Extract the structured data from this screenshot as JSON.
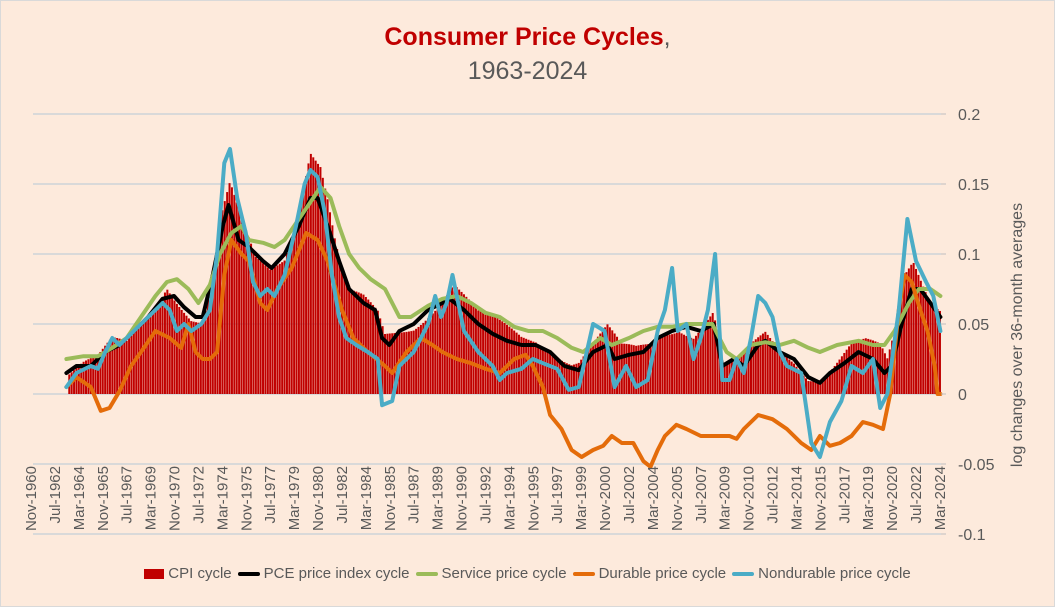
{
  "chart_data": {
    "type": "bar+line",
    "title": "Consumer Price Cycles",
    "title_suffix": ",",
    "subtitle": "1963-2024",
    "ylabel": "log changes over 36-month averages",
    "ylim": [
      -0.1,
      0.2
    ],
    "y_ticks": [
      "0.2",
      "0.15",
      "0.1",
      "0.05",
      "0",
      "-0.05",
      "-0.1"
    ],
    "y_tick_values": [
      0.2,
      0.15,
      0.1,
      0.05,
      0,
      -0.05,
      -0.1
    ],
    "x_ticks": [
      "Nov-1960",
      "Jul-1962",
      "Mar-1964",
      "Nov-1965",
      "Jul-1967",
      "Mar-1969",
      "Nov-1970",
      "Jul-1972",
      "Mar-1974",
      "Nov-1975",
      "Jul-1977",
      "Mar-1979",
      "Nov-1980",
      "Jul-1982",
      "Mar-1984",
      "Nov-1985",
      "Jul-1987",
      "Mar-1989",
      "Nov-1990",
      "Jul-1992",
      "Mar-1994",
      "Nov-1995",
      "Jul-1997",
      "Mar-1999",
      "Nov-2000",
      "Jul-2002",
      "Mar-2004",
      "Nov-2005",
      "Jul-2007",
      "Mar-2009",
      "Nov-2010",
      "Jul-2012",
      "Mar-2014",
      "Nov-2015",
      "Jul-2017",
      "Mar-2019",
      "Nov-2020",
      "Jul-2022",
      "Mar-2024"
    ],
    "x_unit": "year",
    "grid": true,
    "y_axis_side": "right",
    "legend_position": "bottom",
    "series": [
      {
        "name": "CPI cycle",
        "kind": "bar",
        "color": "#c00000",
        "x": [
          1963.5,
          1964.5,
          1965.5,
          1966.5,
          1967.5,
          1968.5,
          1969.5,
          1970.3,
          1971.0,
          1972.0,
          1972.8,
          1973.5,
          1974.0,
          1974.7,
          1975.5,
          1976.5,
          1977.5,
          1978.5,
          1979.5,
          1980.3,
          1981.0,
          1981.5,
          1982.0,
          1982.5,
          1983.0,
          1984.0,
          1985.0,
          1985.5,
          1986.5,
          1987.5,
          1988.5,
          1989.5,
          1990.3,
          1991.0,
          1992.0,
          1993.0,
          1994.0,
          1995.0,
          1996.0,
          1997.0,
          1998.5,
          1999.0,
          2000.5,
          2001.0,
          2002.0,
          2003.0,
          2004.0,
          2005.0,
          2006.0,
          2007.0,
          2008.4,
          2009.0,
          2010.0,
          2011.0,
          2012.0,
          2013.0,
          2014.0,
          2015.0,
          2016.0,
          2017.0,
          2018.0,
          2019.0,
          2020.0,
          2020.5,
          2021.0,
          2021.8,
          2022.3,
          2023.0,
          2023.5,
          2024.2
        ],
        "y": [
          0.015,
          0.02,
          0.022,
          0.035,
          0.035,
          0.05,
          0.065,
          0.081,
          0.07,
          0.055,
          0.05,
          0.08,
          0.12,
          0.146,
          0.12,
          0.095,
          0.09,
          0.1,
          0.135,
          0.177,
          0.165,
          0.14,
          0.11,
          0.085,
          0.07,
          0.065,
          0.055,
          0.04,
          0.045,
          0.05,
          0.06,
          0.07,
          0.08,
          0.07,
          0.055,
          0.05,
          0.045,
          0.04,
          0.04,
          0.035,
          0.025,
          0.025,
          0.04,
          0.045,
          0.03,
          0.03,
          0.035,
          0.045,
          0.05,
          0.045,
          0.06,
          0.02,
          0.02,
          0.03,
          0.04,
          0.03,
          0.025,
          0.015,
          0.015,
          0.025,
          0.035,
          0.035,
          0.03,
          0.02,
          0.04,
          0.085,
          0.095,
          0.08,
          0.07,
          0.065
        ]
      },
      {
        "name": "PCE price index cycle",
        "kind": "line",
        "color": "#000000",
        "x": [
          1963.3,
          1964,
          1965,
          1966,
          1967,
          1968,
          1969,
          1970,
          1970.8,
          1971.5,
          1972.3,
          1972.8,
          1973.5,
          1974.2,
          1974.6,
          1975.3,
          1976,
          1977,
          1977.6,
          1978.5,
          1979.5,
          1980.3,
          1980.8,
          1981.5,
          1982.3,
          1983,
          1984,
          1984.8,
          1985.3,
          1985.8,
          1986.5,
          1987.5,
          1988.5,
          1989.5,
          1990,
          1991,
          1992,
          1993,
          1994,
          1995,
          1996,
          1997,
          1998,
          1999,
          2000,
          2001,
          2001.5,
          2002.5,
          2003.5,
          2004.5,
          2005.5,
          2006.5,
          2007.5,
          2008.4,
          2009,
          2009.8,
          2010.5,
          2011.5,
          2012,
          2013,
          2014,
          2015,
          2015.8,
          2016.5,
          2017.5,
          2018.5,
          2019.5,
          2020.3,
          2020.8,
          2021.5,
          2022.2,
          2022.8,
          2023.5,
          2024.2
        ],
        "y": [
          0.015,
          0.02,
          0.02,
          0.03,
          0.035,
          0.045,
          0.055,
          0.068,
          0.07,
          0.062,
          0.055,
          0.055,
          0.085,
          0.12,
          0.135,
          0.11,
          0.105,
          0.095,
          0.09,
          0.1,
          0.12,
          0.14,
          0.14,
          0.12,
          0.095,
          0.075,
          0.065,
          0.06,
          0.04,
          0.035,
          0.045,
          0.05,
          0.06,
          0.065,
          0.068,
          0.06,
          0.05,
          0.043,
          0.038,
          0.035,
          0.035,
          0.03,
          0.02,
          0.017,
          0.03,
          0.035,
          0.025,
          0.028,
          0.03,
          0.04,
          0.045,
          0.048,
          0.045,
          0.05,
          0.02,
          0.025,
          0.02,
          0.035,
          0.038,
          0.03,
          0.025,
          0.012,
          0.008,
          0.015,
          0.022,
          0.03,
          0.025,
          0.015,
          0.02,
          0.05,
          0.075,
          0.075,
          0.065,
          0.055
        ]
      },
      {
        "name": "Service price cycle",
        "kind": "line",
        "color": "#9bbb59",
        "x": [
          1963.3,
          1964.5,
          1965.5,
          1966.5,
          1967.5,
          1968.5,
          1969.5,
          1970.3,
          1971,
          1971.8,
          1972.5,
          1973.3,
          1974,
          1974.8,
          1975.5,
          1976,
          1977,
          1977.8,
          1978.5,
          1979.5,
          1980.5,
          1981,
          1981.7,
          1982.3,
          1983,
          1983.7,
          1984.5,
          1985.5,
          1986.5,
          1987.3,
          1988.5,
          1989.5,
          1990.5,
          1991.5,
          1992.5,
          1993.5,
          1994.5,
          1995.5,
          1996.5,
          1997.5,
          1998.5,
          1999.3,
          2000.5,
          2001.3,
          2002.5,
          2003.5,
          2004.5,
          2005.5,
          2006.5,
          2007.5,
          2008.3,
          2009.3,
          2010,
          2011,
          2012,
          2013,
          2014,
          2015,
          2015.8,
          2017,
          2018.5,
          2019.5,
          2020.3,
          2021,
          2022,
          2022.7,
          2023.5,
          2024.2
        ],
        "y": [
          0.025,
          0.027,
          0.027,
          0.033,
          0.04,
          0.055,
          0.07,
          0.08,
          0.082,
          0.075,
          0.065,
          0.078,
          0.1,
          0.115,
          0.12,
          0.11,
          0.108,
          0.105,
          0.11,
          0.125,
          0.14,
          0.148,
          0.14,
          0.12,
          0.1,
          0.09,
          0.082,
          0.075,
          0.055,
          0.055,
          0.063,
          0.068,
          0.07,
          0.065,
          0.058,
          0.055,
          0.048,
          0.045,
          0.045,
          0.04,
          0.033,
          0.03,
          0.04,
          0.035,
          0.04,
          0.045,
          0.048,
          0.048,
          0.05,
          0.05,
          0.05,
          0.03,
          0.025,
          0.035,
          0.037,
          0.035,
          0.038,
          0.033,
          0.03,
          0.035,
          0.038,
          0.035,
          0.035,
          0.045,
          0.065,
          0.075,
          0.075,
          0.07
        ]
      },
      {
        "name": "Durable price cycle",
        "kind": "line",
        "color": "#e46c0a",
        "x": [
          1963.3,
          1964,
          1965,
          1965.7,
          1966.3,
          1967,
          1967.8,
          1968.5,
          1969.5,
          1970.5,
          1971.3,
          1971.8,
          1972.3,
          1972.8,
          1973.3,
          1973.8,
          1974.3,
          1974.8,
          1975.5,
          1976,
          1976.8,
          1977.3,
          1978,
          1979,
          1980,
          1980.8,
          1981.5,
          1982.5,
          1983.3,
          1984.3,
          1985.5,
          1986,
          1987,
          1988,
          1988.8,
          1989.5,
          1990.5,
          1991.5,
          1992.5,
          1993.5,
          1994.5,
          1995.3,
          1995.8,
          1996.5,
          1997,
          1997.8,
          1998.5,
          1999.2,
          2000,
          2000.7,
          2001.3,
          2002,
          2002.8,
          2003.5,
          2004,
          2004.5,
          2005,
          2005.8,
          2006.5,
          2007.5,
          2008.5,
          2009.5,
          2010,
          2010.5,
          2011.5,
          2012.5,
          2013.5,
          2014.5,
          2015.2,
          2015.8,
          2016.5,
          2017.2,
          2018,
          2018.8,
          2019.5,
          2020.2,
          2020.7,
          2021.3,
          2021.7,
          2022.2,
          2022.8,
          2023.3,
          2023.8,
          2024.0,
          2024.2
        ],
        "y": [
          0.005,
          0.012,
          0.005,
          -0.012,
          -0.01,
          0.002,
          0.02,
          0.03,
          0.045,
          0.04,
          0.033,
          0.05,
          0.03,
          0.025,
          0.025,
          0.03,
          0.085,
          0.11,
          0.1,
          0.095,
          0.065,
          0.06,
          0.075,
          0.09,
          0.115,
          0.11,
          0.095,
          0.06,
          0.04,
          0.03,
          0.02,
          0.015,
          0.03,
          0.04,
          0.035,
          0.03,
          0.025,
          0.022,
          0.018,
          0.015,
          0.025,
          0.028,
          0.02,
          0.005,
          -0.015,
          -0.025,
          -0.04,
          -0.045,
          -0.04,
          -0.037,
          -0.03,
          -0.035,
          -0.035,
          -0.048,
          -0.052,
          -0.04,
          -0.03,
          -0.022,
          -0.025,
          -0.03,
          -0.03,
          -0.03,
          -0.032,
          -0.025,
          -0.015,
          -0.018,
          -0.025,
          -0.035,
          -0.04,
          -0.03,
          -0.037,
          -0.035,
          -0.03,
          -0.02,
          -0.022,
          -0.025,
          0.0,
          0.06,
          0.085,
          0.08,
          0.06,
          0.045,
          0.02,
          0.0,
          0.0
        ]
      },
      {
        "name": "Nondurable price cycle",
        "kind": "line",
        "color": "#4bacc6",
        "x": [
          1963.3,
          1964,
          1965,
          1965.5,
          1966,
          1966.5,
          1967,
          1968,
          1969,
          1970,
          1970.5,
          1971,
          1971.5,
          1972,
          1972.7,
          1973.3,
          1973.8,
          1974.3,
          1974.7,
          1975.2,
          1975.8,
          1976.3,
          1976.8,
          1977.3,
          1977.8,
          1978.5,
          1979.3,
          1979.9,
          1980.3,
          1980.8,
          1981.3,
          1981.8,
          1982.3,
          1982.8,
          1983.5,
          1984.3,
          1985,
          1985.3,
          1986,
          1986.5,
          1987.5,
          1988.5,
          1989,
          1989.4,
          1989.8,
          1990.2,
          1990.5,
          1991,
          1992,
          1993,
          1993.5,
          1994,
          1995,
          1995.8,
          1996.5,
          1997.5,
          1998.3,
          1999,
          2000,
          2000.8,
          2001.5,
          2002.3,
          2003,
          2003.8,
          2004.5,
          2005,
          2005.5,
          2005.9,
          2006.5,
          2007,
          2007.5,
          2008,
          2008.5,
          2009,
          2009.5,
          2010,
          2010.5,
          2011,
          2011.5,
          2012,
          2012.5,
          2013,
          2013.5,
          2014.5,
          2015.2,
          2015.8,
          2016.5,
          2017.3,
          2018,
          2018.8,
          2019.5,
          2020,
          2020.5,
          2021.3,
          2021.9,
          2022.5,
          2023.2,
          2023.7,
          2024.2
        ],
        "y": [
          0.005,
          0.015,
          0.02,
          0.018,
          0.03,
          0.04,
          0.035,
          0.045,
          0.055,
          0.065,
          0.06,
          0.045,
          0.05,
          0.045,
          0.05,
          0.06,
          0.1,
          0.165,
          0.175,
          0.14,
          0.115,
          0.08,
          0.07,
          0.075,
          0.07,
          0.085,
          0.12,
          0.15,
          0.16,
          0.155,
          0.13,
          0.085,
          0.055,
          0.04,
          0.035,
          0.03,
          0.025,
          -0.008,
          -0.005,
          0.02,
          0.03,
          0.05,
          0.07,
          0.055,
          0.065,
          0.085,
          0.07,
          0.045,
          0.03,
          0.02,
          0.01,
          0.015,
          0.018,
          0.025,
          0.022,
          0.018,
          0.003,
          0.005,
          0.05,
          0.045,
          0.005,
          0.02,
          0.005,
          0.01,
          0.045,
          0.06,
          0.09,
          0.045,
          0.05,
          0.025,
          0.04,
          0.06,
          0.1,
          0.01,
          0.01,
          0.025,
          0.015,
          0.04,
          0.07,
          0.065,
          0.055,
          0.03,
          0.02,
          0.015,
          -0.035,
          -0.045,
          -0.02,
          -0.005,
          0.02,
          0.015,
          0.025,
          -0.01,
          0.0,
          0.06,
          0.125,
          0.095,
          0.08,
          0.07,
          0.045
        ]
      }
    ]
  }
}
